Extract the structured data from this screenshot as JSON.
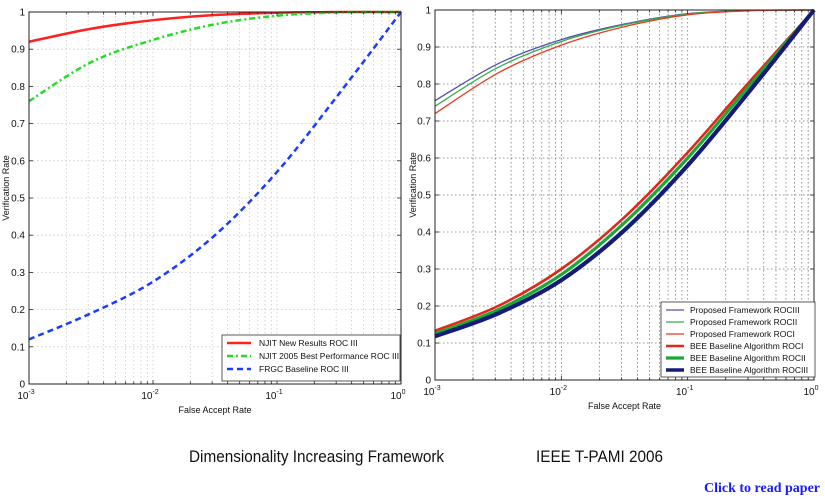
{
  "captions": {
    "left": "Dimensionality Increasing Framework",
    "right": "IEEE T-PAMI 2006",
    "link": "Click to read paper"
  },
  "colors": {
    "link": "#1a1aff",
    "grid": "#b0b0b0"
  },
  "chart_data": [
    {
      "type": "line",
      "title": "",
      "xlabel": "False Accept Rate",
      "ylabel": "Verification Rate",
      "xscale": "log",
      "xlim": [
        0.001,
        1
      ],
      "ylim": [
        0,
        1
      ],
      "grid": true,
      "legend_position": "bottom-right",
      "x_tick_labels": [
        {
          "base": "10",
          "exp": "-3"
        },
        {
          "base": "10",
          "exp": "-2"
        },
        {
          "base": "10",
          "exp": "-1"
        },
        {
          "base": "10",
          "exp": "0"
        }
      ],
      "y_tick_labels": [
        "0",
        "0.1",
        "0.2",
        "0.3",
        "0.4",
        "0.5",
        "0.6",
        "0.7",
        "0.8",
        "0.9",
        "1"
      ],
      "x": [
        0.001,
        0.00316,
        0.01,
        0.0316,
        0.1,
        0.316,
        1
      ],
      "series": [
        {
          "name": "NJIT New Results ROC III",
          "color": "#ff2020",
          "style": "solid",
          "width": 2.5,
          "values": [
            0.92,
            0.955,
            0.978,
            0.992,
            0.998,
            1.0,
            1.0
          ]
        },
        {
          "name": "NJIT 2005 Best Performance ROC III",
          "color": "#22dd22",
          "style": "dashdot",
          "width": 2.5,
          "values": [
            0.76,
            0.865,
            0.925,
            0.967,
            0.99,
            0.999,
            1.0
          ]
        },
        {
          "name": "FRGC Baseline ROC III",
          "color": "#1a3cff",
          "style": "dashed",
          "width": 2.5,
          "values": [
            0.12,
            0.19,
            0.275,
            0.4,
            0.57,
            0.78,
            1.0
          ]
        }
      ]
    },
    {
      "type": "line",
      "title": "",
      "xlabel": "False Accept Rate",
      "ylabel": "Verification Rate",
      "xscale": "log",
      "xlim": [
        0.001,
        1
      ],
      "ylim": [
        0,
        1
      ],
      "grid": true,
      "legend_position": "bottom-right",
      "x_tick_labels": [
        {
          "base": "10",
          "exp": "-3"
        },
        {
          "base": "10",
          "exp": "-2"
        },
        {
          "base": "10",
          "exp": "-1"
        },
        {
          "base": "10",
          "exp": "0"
        }
      ],
      "y_tick_labels": [
        "0",
        "0.1",
        "0.2",
        "0.3",
        "0.4",
        "0.5",
        "0.6",
        "0.7",
        "0.8",
        "0.9",
        "1"
      ],
      "x": [
        0.001,
        0.00316,
        0.01,
        0.0316,
        0.1,
        0.316,
        1
      ],
      "series": [
        {
          "name": "Proposed Framework ROCIII",
          "color": "#5050a8",
          "style": "solid",
          "width": 1.3,
          "values": [
            0.755,
            0.855,
            0.92,
            0.962,
            0.99,
            0.999,
            1.0
          ]
        },
        {
          "name": "Proposed Framework ROCII",
          "color": "#30b050",
          "style": "solid",
          "width": 1.3,
          "values": [
            0.74,
            0.845,
            0.915,
            0.96,
            0.989,
            0.999,
            1.0
          ]
        },
        {
          "name": "Proposed Framework ROCI",
          "color": "#e83a20",
          "style": "solid",
          "width": 1.3,
          "values": [
            0.72,
            0.83,
            0.905,
            0.955,
            0.987,
            0.998,
            1.0
          ]
        },
        {
          "name": "BEE Baseline Algorithm ROCI",
          "color": "#e02818",
          "style": "solid",
          "width": 2.6,
          "values": [
            0.133,
            0.2,
            0.3,
            0.44,
            0.615,
            0.81,
            1.0
          ]
        },
        {
          "name": "BEE Baseline Algorithm ROCII",
          "color": "#18a838",
          "style": "solid",
          "width": 3.2,
          "values": [
            0.125,
            0.19,
            0.285,
            0.425,
            0.6,
            0.8,
            1.0
          ]
        },
        {
          "name": "BEE Baseline Algorithm ROCIII",
          "color": "#141c78",
          "style": "solid",
          "width": 4.2,
          "values": [
            0.118,
            0.18,
            0.27,
            0.405,
            0.58,
            0.785,
            1.0
          ]
        }
      ]
    }
  ]
}
